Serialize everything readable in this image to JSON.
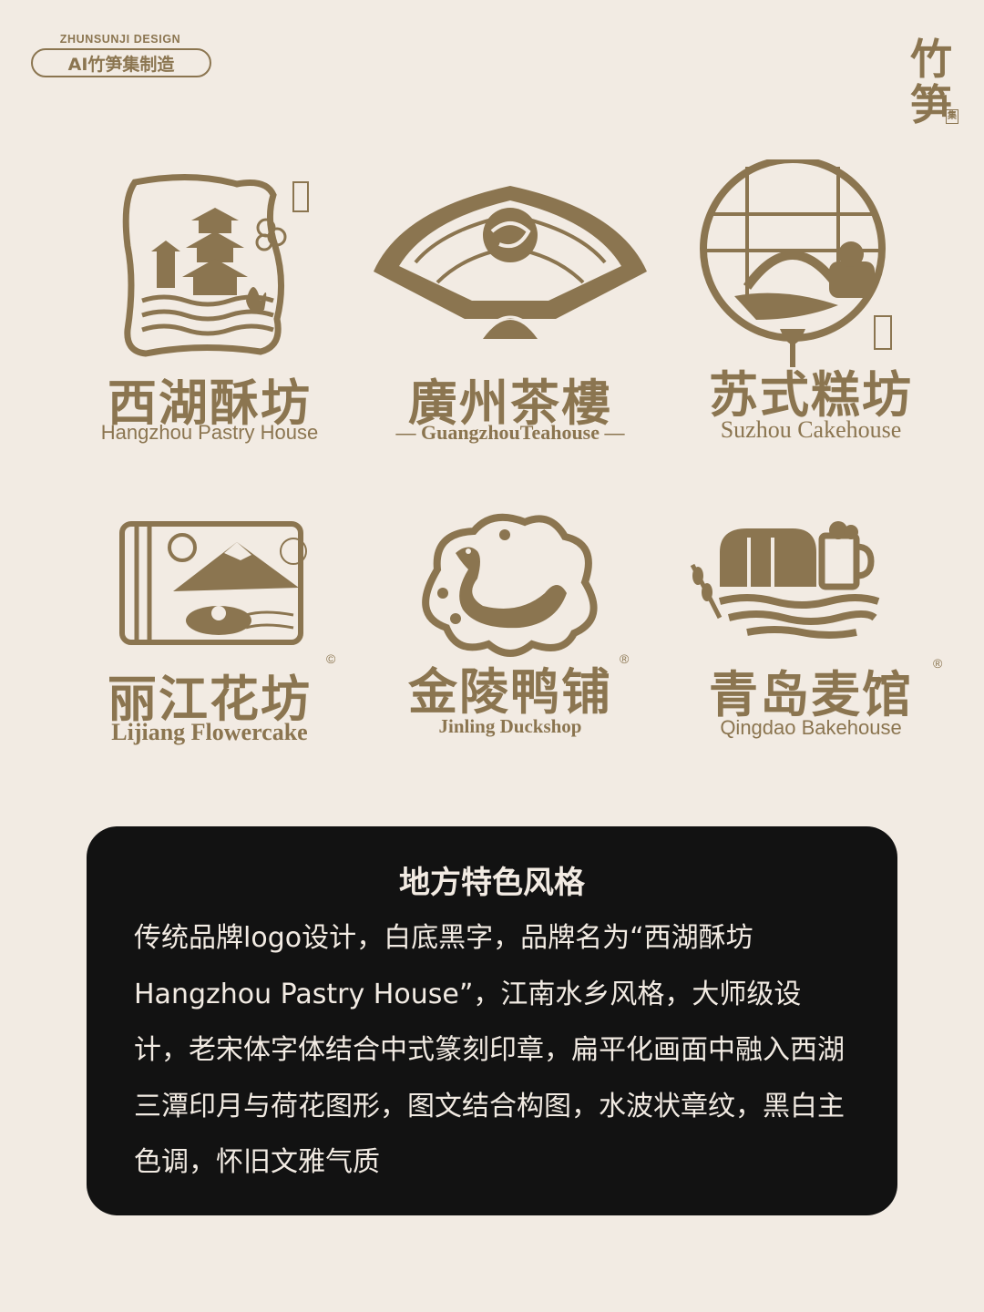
{
  "header": {
    "studio_en": "ZHUNSUNJI DESIGN",
    "studio_badge": "AI竹笋集制造",
    "corner_mark": "竹笋",
    "corner_mark_small": "集"
  },
  "logos": [
    {
      "cn": "西湖酥坊",
      "en": "Hangzhou Pastry House",
      "icon": "pagoda-lotus-seal-icon"
    },
    {
      "cn": "廣州茶樓",
      "en": "— GuangzhouTeahouse —",
      "icon": "shrimp-dumpling-fan-icon"
    },
    {
      "cn": "苏式糕坊",
      "en": "Suzhou Cakehouse",
      "icon": "bridge-cake-window-icon"
    },
    {
      "cn": "丽江花坊",
      "en": "Lijiang Flowercake",
      "reg": "©",
      "icon": "mountain-flower-cake-icon"
    },
    {
      "cn": "金陵鸭铺",
      "en": "Jinling Duckshop",
      "reg": "®",
      "icon": "duck-plum-cloud-icon"
    },
    {
      "cn": "青岛麦馆",
      "en": "Qingdao Bakehouse",
      "reg": "®",
      "icon": "bread-beer-wave-icon"
    }
  ],
  "card": {
    "title": "地方特色风格",
    "body": "传统品牌logo设计，白底黑字，品牌名为“西湖酥坊Hangzhou Pastry House”，江南水乡风格，大师级设计，老宋体字体结合中式篆刻印章，扁平化画面中融入西湖三潭印月与荷花图形，图文结合构图，水波状章纹，黑白主色调，怀旧文雅气质"
  },
  "colors": {
    "background": "#f2ebe3",
    "gold": "#8b7550",
    "card": "#121212",
    "card_text": "#f2ebe3"
  }
}
